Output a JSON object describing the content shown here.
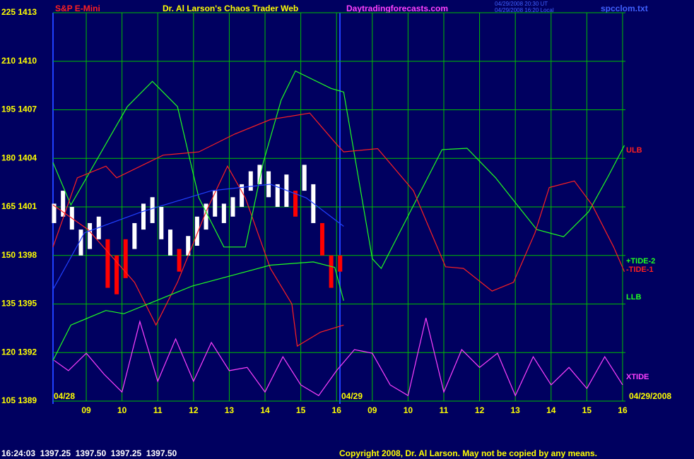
{
  "chart_data": {
    "type": "line",
    "header": {
      "symbol": "S&P E-Mini",
      "title": "Dr. Al Larson's Chaos Trader Web",
      "site": "Daytradingforecasts.com",
      "stamp_ut": "04/29/2008 20:30 UT",
      "stamp_local": "04/29/2008 16:20 Local",
      "file": "spcclom.txt"
    },
    "footer": {
      "quote": "16:24:03  1397.25  1397.50  1397.25  1397.50",
      "copyright": "Copyright 2008, Dr. Al Larson. May not be copied by any means."
    },
    "date_labels": [
      "04/28",
      "04/29",
      "04/29/2008"
    ],
    "ylim": [
      105,
      225
    ],
    "yticks": [
      {
        "value": 225,
        "label": "225 1413"
      },
      {
        "value": 210,
        "label": "210 1410"
      },
      {
        "value": 195,
        "label": "195 1407"
      },
      {
        "value": 180,
        "label": "180 1404"
      },
      {
        "value": 165,
        "label": "165 1401"
      },
      {
        "value": 150,
        "label": "150 1398"
      },
      {
        "value": 135,
        "label": "135 1395"
      },
      {
        "value": 120,
        "label": "120 1392"
      },
      {
        "value": 105,
        "label": "105 1389"
      }
    ],
    "xlim": [
      8.07,
      24.08
    ],
    "xticks": [
      {
        "value": 9,
        "label": "09"
      },
      10,
      11,
      12,
      13,
      14,
      15,
      16,
      {
        "value": 17,
        "label": "09"
      },
      {
        "value": 18,
        "label": "10"
      },
      {
        "value": 19,
        "label": "11"
      },
      {
        "value": 20,
        "label": "12"
      },
      {
        "value": 21,
        "label": "13"
      },
      {
        "value": 22,
        "label": "14"
      },
      {
        "value": 23,
        "label": "15"
      },
      {
        "value": 24,
        "label": "16"
      }
    ],
    "grid": true,
    "grid_color": "#00c000",
    "series": [
      {
        "name": "ULB",
        "color": "#ff2020",
        "x": [
          8.07,
          9.05,
          10.35,
          10.95,
          11.55,
          12.35,
          12.95,
          13.45,
          14.15,
          14.75,
          14.9,
          15.55,
          16.2
        ],
        "values": [
          165.6,
          158,
          141.7,
          128.5,
          141.7,
          163.5,
          177.6,
          167.8,
          146,
          135,
          122,
          126.3,
          128.5
        ]
      },
      {
        "name": "+TIDE-2",
        "color": "#20ff20",
        "x": [
          8.07,
          8.57,
          10.15,
          10.85,
          11.55,
          12.15,
          12.85,
          13.45,
          13.95,
          14.45,
          14.85,
          15.85,
          16.2,
          17.0,
          17.25,
          18.95,
          19.65,
          20.45,
          21.6,
          22.35,
          23.05,
          23.6,
          24.05
        ],
        "values": [
          178.7,
          165.6,
          196,
          203.8,
          196,
          167.8,
          152.6,
          152.6,
          178.7,
          198,
          207,
          201.6,
          200.5,
          149,
          146,
          182.7,
          183.1,
          174,
          158,
          155.8,
          163.5,
          174.5,
          184
        ]
      },
      {
        "name": "-TIDE-1",
        "color": "#ff2020",
        "x": [
          8.07,
          8.75,
          9.55,
          9.85,
          11.15,
          12.15,
          13.15,
          14.15,
          15.25,
          15.95,
          16.2,
          17.15,
          18.15,
          19.05,
          19.55,
          20.35,
          20.95,
          21.55,
          21.95,
          22.65,
          23.15,
          23.75,
          24.05
        ],
        "values": [
          152.6,
          174,
          177.6,
          174,
          181,
          182,
          187.5,
          192,
          194,
          185,
          182,
          183,
          170,
          146.5,
          146,
          139,
          141.7,
          157,
          171,
          173,
          165.6,
          152.6,
          145
        ]
      },
      {
        "name": "LLB",
        "color": "#20ff20",
        "x": [
          8.07,
          8.57,
          9.55,
          10.05,
          10.95,
          11.95,
          14.15,
          15.35,
          15.95,
          16.2
        ],
        "values": [
          117.6,
          128.5,
          133,
          132,
          136,
          140.5,
          147,
          148,
          146.3,
          136
        ]
      },
      {
        "name": "XTIDE",
        "color": "#ff40ff",
        "x": [
          8.1,
          8.5,
          9.0,
          9.5,
          10.0,
          10.5,
          11.0,
          11.5,
          12.0,
          12.5,
          13.0,
          13.5,
          14.0,
          14.5,
          15.0,
          15.5,
          16.0,
          16.5,
          17.0,
          17.5,
          18.0,
          18.5,
          19.0,
          19.5,
          20.0,
          20.5,
          21.0,
          21.5,
          22.0,
          22.5,
          23.0,
          23.5,
          24.0
        ],
        "values": [
          117.6,
          114.4,
          119.8,
          113.3,
          107.8,
          129.6,
          111.1,
          124.2,
          111.1,
          123.1,
          114.4,
          115.4,
          107.8,
          118.7,
          110,
          106.7,
          114.4,
          120.9,
          119.8,
          110,
          106.7,
          130.7,
          107.8,
          120.9,
          115.4,
          119.8,
          106.7,
          118.7,
          110,
          115.4,
          108.9,
          118.7,
          110
        ]
      },
      {
        "color": "#2040ff",
        "x": [
          8.07,
          8.95,
          10.55,
          12.5,
          14.15,
          15.15,
          16.2
        ],
        "values": [
          139.5,
          157,
          163.5,
          170,
          172,
          167.8,
          159
        ]
      }
    ],
    "price": {
      "x": [
        8.1,
        8.35,
        8.6,
        8.85,
        9.1,
        9.35,
        9.6,
        9.85,
        10.1,
        10.35,
        10.6,
        10.85,
        11.1,
        11.35,
        11.6,
        11.85,
        12.1,
        12.35,
        12.6,
        12.85,
        13.1,
        13.35,
        13.6,
        13.85,
        14.1,
        14.35,
        14.6,
        14.85,
        15.1,
        15.35,
        15.6,
        15.85,
        16.1
      ],
      "low": [
        160,
        162,
        158,
        150,
        152,
        155,
        140,
        138,
        143,
        152,
        158,
        160,
        155,
        150,
        145,
        150,
        153,
        158,
        162,
        160,
        162,
        165,
        170,
        172,
        168,
        165,
        165,
        162,
        170,
        160,
        150,
        140,
        145
      ],
      "high": [
        166,
        170,
        165,
        158,
        160,
        162,
        155,
        150,
        155,
        160,
        166,
        168,
        165,
        158,
        152,
        156,
        162,
        166,
        170,
        166,
        168,
        172,
        176,
        178,
        176,
        172,
        175,
        170,
        178,
        172,
        160,
        150,
        150
      ],
      "colors": [
        "#ffffff",
        "#ffffff",
        "#ffffff",
        "#ffffff",
        "#ffffff",
        "#ffffff",
        "#ff0000",
        "#ff0000",
        "#ff0000",
        "#ffffff",
        "#ffffff",
        "#ffffff",
        "#ffffff",
        "#ffffff",
        "#ff0000",
        "#ffffff",
        "#ffffff",
        "#ffffff",
        "#ffffff",
        "#ffffff",
        "#ffffff",
        "#ffffff",
        "#ffffff",
        "#ffffff",
        "#ffffff",
        "#ffffff",
        "#ffffff",
        "#ff0000",
        "#ffffff",
        "#ffffff",
        "#ff0000",
        "#ff0000",
        "#ff0000"
      ]
    }
  }
}
